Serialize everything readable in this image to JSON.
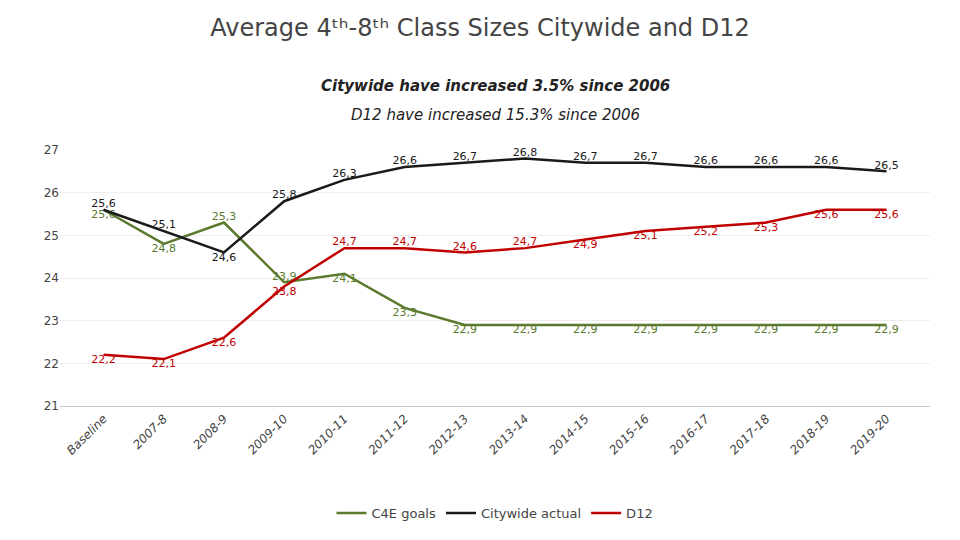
{
  "chart_data": {
    "type": "line",
    "title": "Average 4ᵗʰ-8ᵗʰ Class Sizes Citywide and D12",
    "subtitle": [
      "Citywide have increased 3.5% since 2006",
      "D12 have increased 15.3% since 2006"
    ],
    "categories": [
      "Baseline",
      "2007-8",
      "2008-9",
      "2009-10",
      "2010-11",
      "2011-12",
      "2012-13",
      "2013-14",
      "2014-15",
      "2015-16",
      "2016-17",
      "2017-18",
      "2018-19",
      "2019-20"
    ],
    "series": [
      {
        "name": "C4E goals",
        "color": "#5a7a2e",
        "values": [
          25.6,
          24.8,
          25.3,
          23.9,
          24.1,
          23.3,
          22.9,
          22.9,
          22.9,
          22.9,
          22.9,
          22.9,
          22.9,
          22.9
        ],
        "value_labels": [
          "25,6",
          "24,8",
          "25,3",
          "23,9",
          "24,1",
          "23,3",
          "22,9",
          "22,9",
          "22,9",
          "22,9",
          "22,9",
          "22,9",
          "22,9",
          "22,9"
        ]
      },
      {
        "name": "Citywide actual",
        "color": "#1a1a1a",
        "values": [
          25.6,
          25.1,
          24.6,
          25.8,
          26.3,
          26.6,
          26.7,
          26.8,
          26.7,
          26.7,
          26.6,
          26.6,
          26.6,
          26.5
        ],
        "value_labels": [
          "25,6",
          "25,1",
          "24,6",
          "25,8",
          "26,3",
          "26,6",
          "26,7",
          "26,8",
          "26,7",
          "26,7",
          "26,6",
          "26,6",
          "26,6",
          "26,5"
        ]
      },
      {
        "name": "D12",
        "color": "#c00000",
        "values": [
          22.2,
          22.1,
          22.6,
          23.8,
          24.7,
          24.7,
          24.6,
          24.7,
          24.9,
          25.1,
          25.2,
          25.3,
          25.6,
          25.6
        ],
        "value_labels": [
          "22,2",
          "22,1",
          "22,6",
          "23,8",
          "24,7",
          "24,7",
          "24,6",
          "24,7",
          "24,9",
          "25,1",
          "25,2",
          "25,3",
          "25,6",
          "25,6"
        ]
      }
    ],
    "ylim": [
      21,
      27
    ],
    "yticks": [
      21,
      22,
      23,
      24,
      25,
      26,
      27
    ],
    "grid": true,
    "legend": "bottom",
    "data_labels": true
  }
}
